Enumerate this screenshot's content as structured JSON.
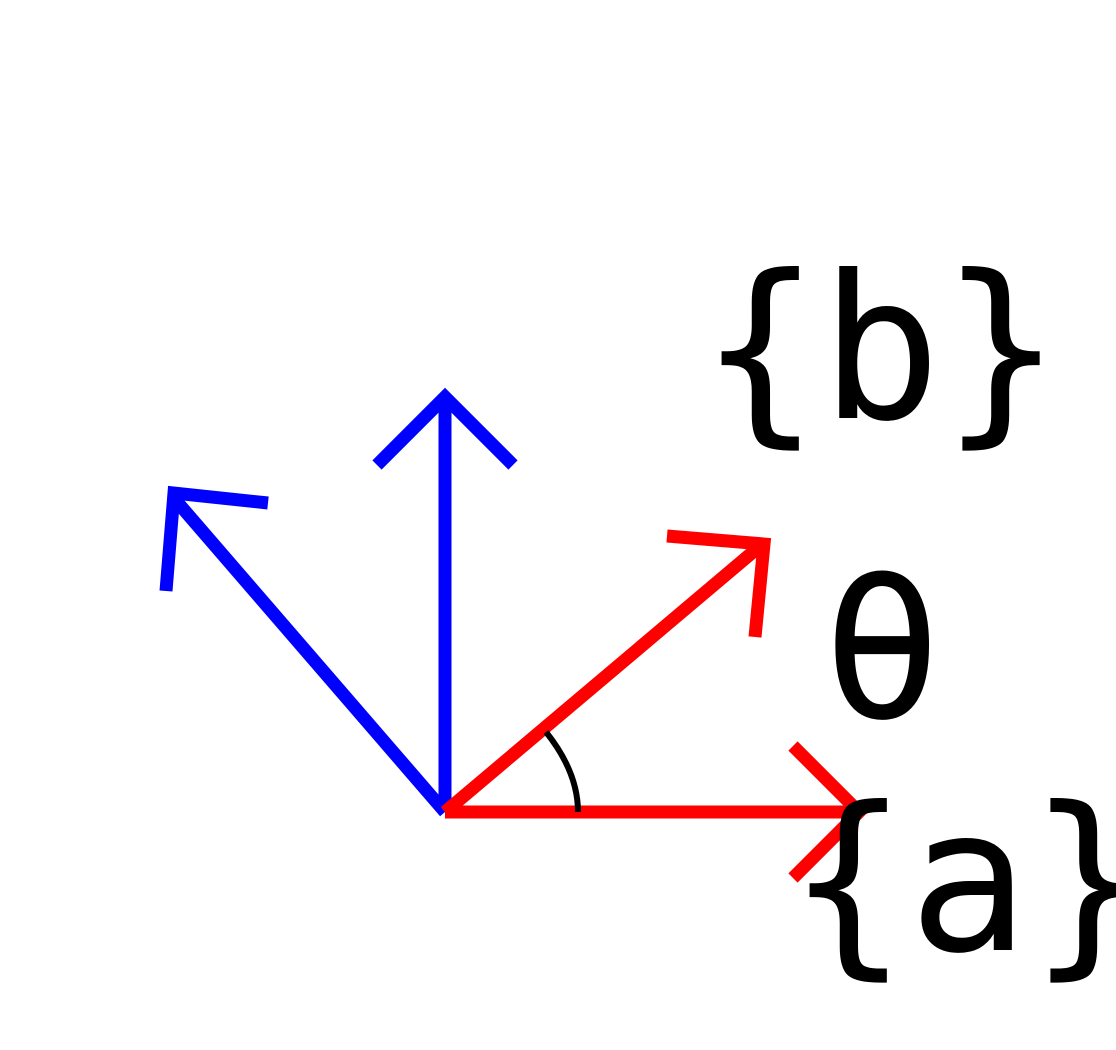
{
  "diagram": {
    "labels": {
      "frame_b": "{b}",
      "angle": "θ",
      "frame_a": "{a}"
    },
    "colors": {
      "frame_a": "#ff0000",
      "frame_b": "#0000ff",
      "angle_arc": "#000000",
      "text": "#000000",
      "background": "#ffffff"
    }
  }
}
